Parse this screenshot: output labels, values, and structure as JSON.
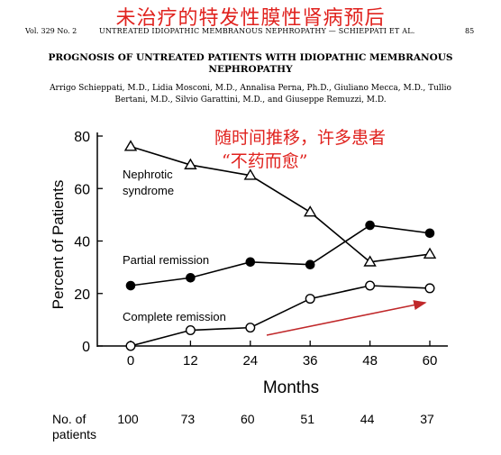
{
  "header": {
    "chinese_title": "未治疗的特发性膜性肾病预后",
    "volume": "Vol. 329   No. 2",
    "running_title": "UNTREATED IDIOPATHIC MEMBRANOUS NEPHROPATHY — SCHIEPPATI ET AL.",
    "page_number": "85"
  },
  "article": {
    "title": "PROGNOSIS OF UNTREATED PATIENTS WITH IDIOPATHIC MEMBRANOUS NEPHROPATHY",
    "authors": "Arrigo Schieppati, M.D., Lidia Mosconi, M.D., Annalisa Perna, Ph.D., Giuliano Mecca, M.D., Tullio Bertani, M.D., Silvio Garattini, M.D., and Giuseppe Remuzzi, M.D."
  },
  "annotation": {
    "line1": "随时间推移，许多患者",
    "line2": "“不药而愈”",
    "color": "#e0221e"
  },
  "chart_data": {
    "type": "line",
    "x": [
      0,
      12,
      24,
      36,
      48,
      60
    ],
    "xlabel": "Months",
    "ylabel": "Percent of Patients",
    "xlim": [
      0,
      60
    ],
    "ylim": [
      0,
      80
    ],
    "xticks": [
      "0",
      "12",
      "24",
      "36",
      "48",
      "60"
    ],
    "yticks": [
      "0",
      "20",
      "40",
      "60",
      "80"
    ],
    "grid": false,
    "series": [
      {
        "name": "Nephrotic syndrome",
        "marker": "open-triangle",
        "values": [
          76,
          69,
          65,
          51,
          32,
          35
        ]
      },
      {
        "name": "Partial remission",
        "marker": "filled-circle",
        "values": [
          23,
          26,
          32,
          31,
          46,
          43
        ]
      },
      {
        "name": "Complete remission",
        "marker": "open-circle",
        "values": [
          0,
          6,
          7,
          18,
          23,
          22
        ]
      }
    ],
    "patients_row": {
      "label_line1": "No. of",
      "label_line2": "patients",
      "values": [
        "100",
        "73",
        "60",
        "51",
        "44",
        "37"
      ]
    },
    "trend_arrow_color": "#c0282a"
  }
}
